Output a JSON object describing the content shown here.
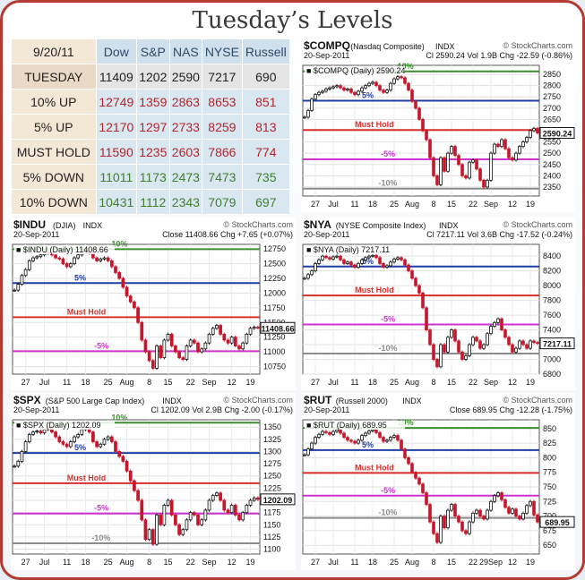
{
  "page": {
    "title": "Tuesday’s Levels"
  },
  "table": {
    "header": [
      "9/20/11",
      "Dow",
      "S&P",
      "NAS",
      "NYSE",
      "Russell"
    ],
    "rows": [
      {
        "label": "TUESDAY",
        "kind": "today",
        "values": [
          "11409",
          "1202",
          "2590",
          "7217",
          "690"
        ]
      },
      {
        "label": "10% UP",
        "kind": "up",
        "values": [
          "12749",
          "1359",
          "2863",
          "8653",
          "851"
        ]
      },
      {
        "label": "5% UP",
        "kind": "up",
        "values": [
          "12170",
          "1297",
          "2733",
          "8259",
          "813"
        ]
      },
      {
        "label": "MUST HOLD",
        "kind": "up",
        "values": [
          "11590",
          "1235",
          "2603",
          "7866",
          "774"
        ]
      },
      {
        "label": "5% DOWN",
        "kind": "down",
        "values": [
          "11011",
          "1173",
          "2473",
          "7473",
          "735"
        ]
      },
      {
        "label": "10% DOWN",
        "kind": "down",
        "values": [
          "10431",
          "1112",
          "2343",
          "7079",
          "697"
        ]
      }
    ],
    "colors": {
      "up": "#b3242b",
      "down": "#3f7f2d",
      "today": "#222222"
    }
  },
  "chart_data": [
    {
      "id": "compq",
      "type": "candlestick",
      "symbol": "$COMPQ",
      "name": "(Nasdaq Composite)",
      "exchange": "INDX",
      "date": "20-Sep-2011",
      "stats": "Cl 2590.24  Vol 1.9B  Chg -22.59 (-0.86%)",
      "series_label": "■ $COMPQ (Daily) 2590.24",
      "watermark": "© StockCharts.com",
      "ylim": [
        2310,
        2890
      ],
      "yticks": [
        "2850",
        "2800",
        "2750",
        "2700",
        "2650",
        "2600",
        "2550",
        "2500",
        "2450",
        "2400",
        "2350"
      ],
      "x_labels": [
        "27",
        "Jul",
        "11",
        "18",
        "25",
        "Aug",
        "8",
        "15",
        "22",
        "Sep",
        "12",
        "19"
      ],
      "last_value": "2590.24",
      "levels": [
        {
          "label": "10%",
          "value": 2863,
          "color": "#3a8f2d"
        },
        {
          "label": "5%",
          "value": 2733,
          "color": "#1f3fa6"
        },
        {
          "label": "Must Hold",
          "value": 2603,
          "color": "#d7302b"
        },
        {
          "label": "-5%",
          "value": 2473,
          "color": "#cf33cf"
        },
        {
          "label": "-10%",
          "value": 2343,
          "color": "#8c8c8c"
        }
      ],
      "closes": [
        2660,
        2690,
        2740,
        2760,
        2770,
        2775,
        2785,
        2790,
        2795,
        2800,
        2790,
        2780,
        2785,
        2770,
        2760,
        2775,
        2790,
        2800,
        2810,
        2815,
        2800,
        2780,
        2770,
        2780,
        2810,
        2830,
        2840,
        2835,
        2810,
        2780,
        2730,
        2700,
        2650,
        2600,
        2560,
        2480,
        2400,
        2360,
        2480,
        2420,
        2500,
        2530,
        2490,
        2450,
        2400,
        2390,
        2460,
        2470,
        2430,
        2380,
        2350,
        2380,
        2500,
        2540,
        2530,
        2560,
        2520,
        2480,
        2470,
        2500,
        2530,
        2550,
        2570,
        2600,
        2610,
        2590
      ]
    },
    {
      "id": "indu",
      "type": "candlestick",
      "symbol": "$INDU",
      "name": "(DJIA)",
      "exchange": "INDX",
      "date": "20-Sep-2011",
      "stats": "Close 11408.66  Chg +7.65 (+0.07%)",
      "series_label": "■ $INDU (Daily) 11408.66",
      "watermark": "© StockCharts.com",
      "ylim": [
        10620,
        12830
      ],
      "yticks": [
        "12750",
        "12500",
        "12250",
        "12000",
        "11750",
        "11500",
        "11250",
        "11000",
        "10750"
      ],
      "x_labels": [
        "27",
        "Jul",
        "11",
        "18",
        "25",
        "Aug",
        "8",
        "15",
        "22",
        "Sep",
        "12",
        "19"
      ],
      "last_value": "11408.66",
      "levels": [
        {
          "label": "10%",
          "value": 12749,
          "color": "#3a8f2d"
        },
        {
          "label": "5%",
          "value": 12170,
          "color": "#1f3fa6"
        },
        {
          "label": "Must Hold",
          "value": 11590,
          "color": "#d7302b"
        },
        {
          "label": "-5%",
          "value": 11011,
          "color": "#cf33cf"
        }
      ],
      "closes": [
        12050,
        12150,
        12300,
        12400,
        12550,
        12600,
        12620,
        12650,
        12680,
        12700,
        12650,
        12600,
        12580,
        12500,
        12450,
        12500,
        12600,
        12650,
        12700,
        12720,
        12680,
        12600,
        12550,
        12580,
        12600,
        12550,
        12450,
        12350,
        12250,
        12100,
        11950,
        11850,
        11750,
        11500,
        11200,
        11000,
        10850,
        10720,
        11100,
        10900,
        11200,
        11300,
        11100,
        11000,
        10900,
        10870,
        11100,
        11200,
        11150,
        11000,
        11050,
        11150,
        11300,
        11400,
        11450,
        11300,
        11200,
        11150,
        11250,
        11100,
        11050,
        11150,
        11300,
        11400,
        11420,
        11409
      ]
    },
    {
      "id": "nya",
      "type": "candlestick",
      "symbol": "$NYA",
      "name": "(NYSE Composite Index)",
      "exchange": "INDX",
      "date": "20-Sep-2011",
      "stats": "Cl 7217.11  Vol 3.6B  Chg -17.52 (-0.24%)",
      "series_label": "■ $NYA (Daily) 7217.11",
      "watermark": "© StockCharts.com",
      "ylim": [
        6800,
        8560
      ],
      "yticks": [
        "8400",
        "8200",
        "8000",
        "7800",
        "7600",
        "7400",
        "7200",
        "7000",
        "6800"
      ],
      "x_labels": [
        "27",
        "Jul",
        "11",
        "18",
        "25",
        "Aug",
        "8",
        "15",
        "22",
        "Sep",
        "12",
        "19"
      ],
      "last_value": "7217.11",
      "levels": [
        {
          "label": "5%",
          "value": 8259,
          "color": "#1f3fa6"
        },
        {
          "label": "Must Hold",
          "value": 7866,
          "color": "#d7302b"
        },
        {
          "label": "-5%",
          "value": 7473,
          "color": "#cf33cf"
        },
        {
          "label": "-10%",
          "value": 7079,
          "color": "#8c8c8c"
        }
      ],
      "closes": [
        8100,
        8150,
        8200,
        8300,
        8350,
        8400,
        8380,
        8360,
        8390,
        8400,
        8350,
        8300,
        8320,
        8280,
        8250,
        8300,
        8350,
        8380,
        8400,
        8410,
        8380,
        8300,
        8250,
        8270,
        8320,
        8360,
        8380,
        8350,
        8280,
        8200,
        8100,
        8000,
        7900,
        7700,
        7400,
        7200,
        7000,
        6900,
        7200,
        7100,
        7300,
        7400,
        7250,
        7100,
        7000,
        7050,
        7200,
        7300,
        7250,
        7150,
        7200,
        7350,
        7450,
        7500,
        7550,
        7400,
        7300,
        7200,
        7100,
        7150,
        7250,
        7200,
        7150,
        7250,
        7230,
        7217
      ]
    },
    {
      "id": "spx",
      "type": "candlestick",
      "symbol": "$SPX",
      "name": "(S&P 500 Large Cap Index)",
      "exchange": "INDX",
      "date": "20-Sep-2011",
      "stats": "Cl 1202.09  Vol 2.9B  Chg -2.00 (-0.17%)",
      "series_label": "■ $SPX (Daily) 1202.09",
      "watermark": "© StockCharts.com",
      "ylim": [
        1090,
        1365
      ],
      "yticks": [
        "1350",
        "1325",
        "1300",
        "1275",
        "1250",
        "1225",
        "1200",
        "1175",
        "1150",
        "1125",
        "1100"
      ],
      "x_labels": [
        "27",
        "Jul",
        "11",
        "18",
        "25",
        "Aug",
        "8",
        "15",
        "22",
        "Sep",
        "12",
        "19"
      ],
      "last_value": "1202.09",
      "levels": [
        {
          "label": "10%",
          "value": 1359,
          "color": "#3a8f2d"
        },
        {
          "label": "5%",
          "value": 1297,
          "color": "#1f3fa6"
        },
        {
          "label": "Must Hold",
          "value": 1235,
          "color": "#d7302b"
        },
        {
          "label": "-5%",
          "value": 1173,
          "color": "#cf33cf"
        },
        {
          "label": "-10%",
          "value": 1112,
          "color": "#8c8c8c"
        }
      ],
      "closes": [
        1270,
        1280,
        1300,
        1320,
        1335,
        1340,
        1342,
        1338,
        1345,
        1350,
        1340,
        1330,
        1320,
        1315,
        1310,
        1320,
        1330,
        1335,
        1345,
        1348,
        1340,
        1320,
        1310,
        1315,
        1325,
        1330,
        1320,
        1300,
        1290,
        1280,
        1260,
        1240,
        1220,
        1200,
        1160,
        1120,
        1140,
        1110,
        1170,
        1150,
        1190,
        1200,
        1170,
        1150,
        1130,
        1140,
        1160,
        1175,
        1170,
        1150,
        1160,
        1180,
        1200,
        1210,
        1215,
        1200,
        1180,
        1175,
        1190,
        1170,
        1160,
        1175,
        1190,
        1200,
        1205,
        1202
      ]
    },
    {
      "id": "rut",
      "type": "candlestick",
      "symbol": "$RUT",
      "name": "(Russell 2000)",
      "exchange": "INDX",
      "date": "20-Sep-2011",
      "stats": "Close 689.95  Chg -12.28 (-1.75%)",
      "series_label": "■ $RUT (Daily) 689.95",
      "watermark": "© StockCharts.com",
      "ylim": [
        635,
        865
      ],
      "yticks": [
        "850",
        "825",
        "800",
        "775",
        "750",
        "725",
        "700",
        "675",
        "650"
      ],
      "x_labels": [
        "27",
        "Jul",
        "11",
        "18",
        "25",
        "Aug",
        "8",
        "15",
        "22",
        "29Sep",
        "12",
        "19"
      ],
      "last_value": "689.95",
      "levels": [
        {
          "label": "10%",
          "value": 851,
          "color": "#3a8f2d"
        },
        {
          "label": "5%",
          "value": 813,
          "color": "#1f3fa6"
        },
        {
          "label": "Must Hold",
          "value": 774,
          "color": "#d7302b"
        },
        {
          "label": "-5%",
          "value": 735,
          "color": "#cf33cf"
        },
        {
          "label": "-10%",
          "value": 697,
          "color": "#8c8c8c"
        }
      ],
      "closes": [
        805,
        815,
        825,
        835,
        840,
        845,
        843,
        840,
        845,
        848,
        842,
        835,
        830,
        828,
        825,
        830,
        838,
        842,
        846,
        848,
        843,
        835,
        828,
        830,
        835,
        838,
        830,
        815,
        800,
        790,
        775,
        765,
        755,
        740,
        720,
        690,
        670,
        655,
        700,
        680,
        710,
        720,
        700,
        690,
        675,
        670,
        690,
        705,
        710,
        700,
        695,
        710,
        725,
        735,
        740,
        728,
        715,
        705,
        712,
        700,
        695,
        705,
        718,
        725,
        702,
        690
      ]
    }
  ]
}
